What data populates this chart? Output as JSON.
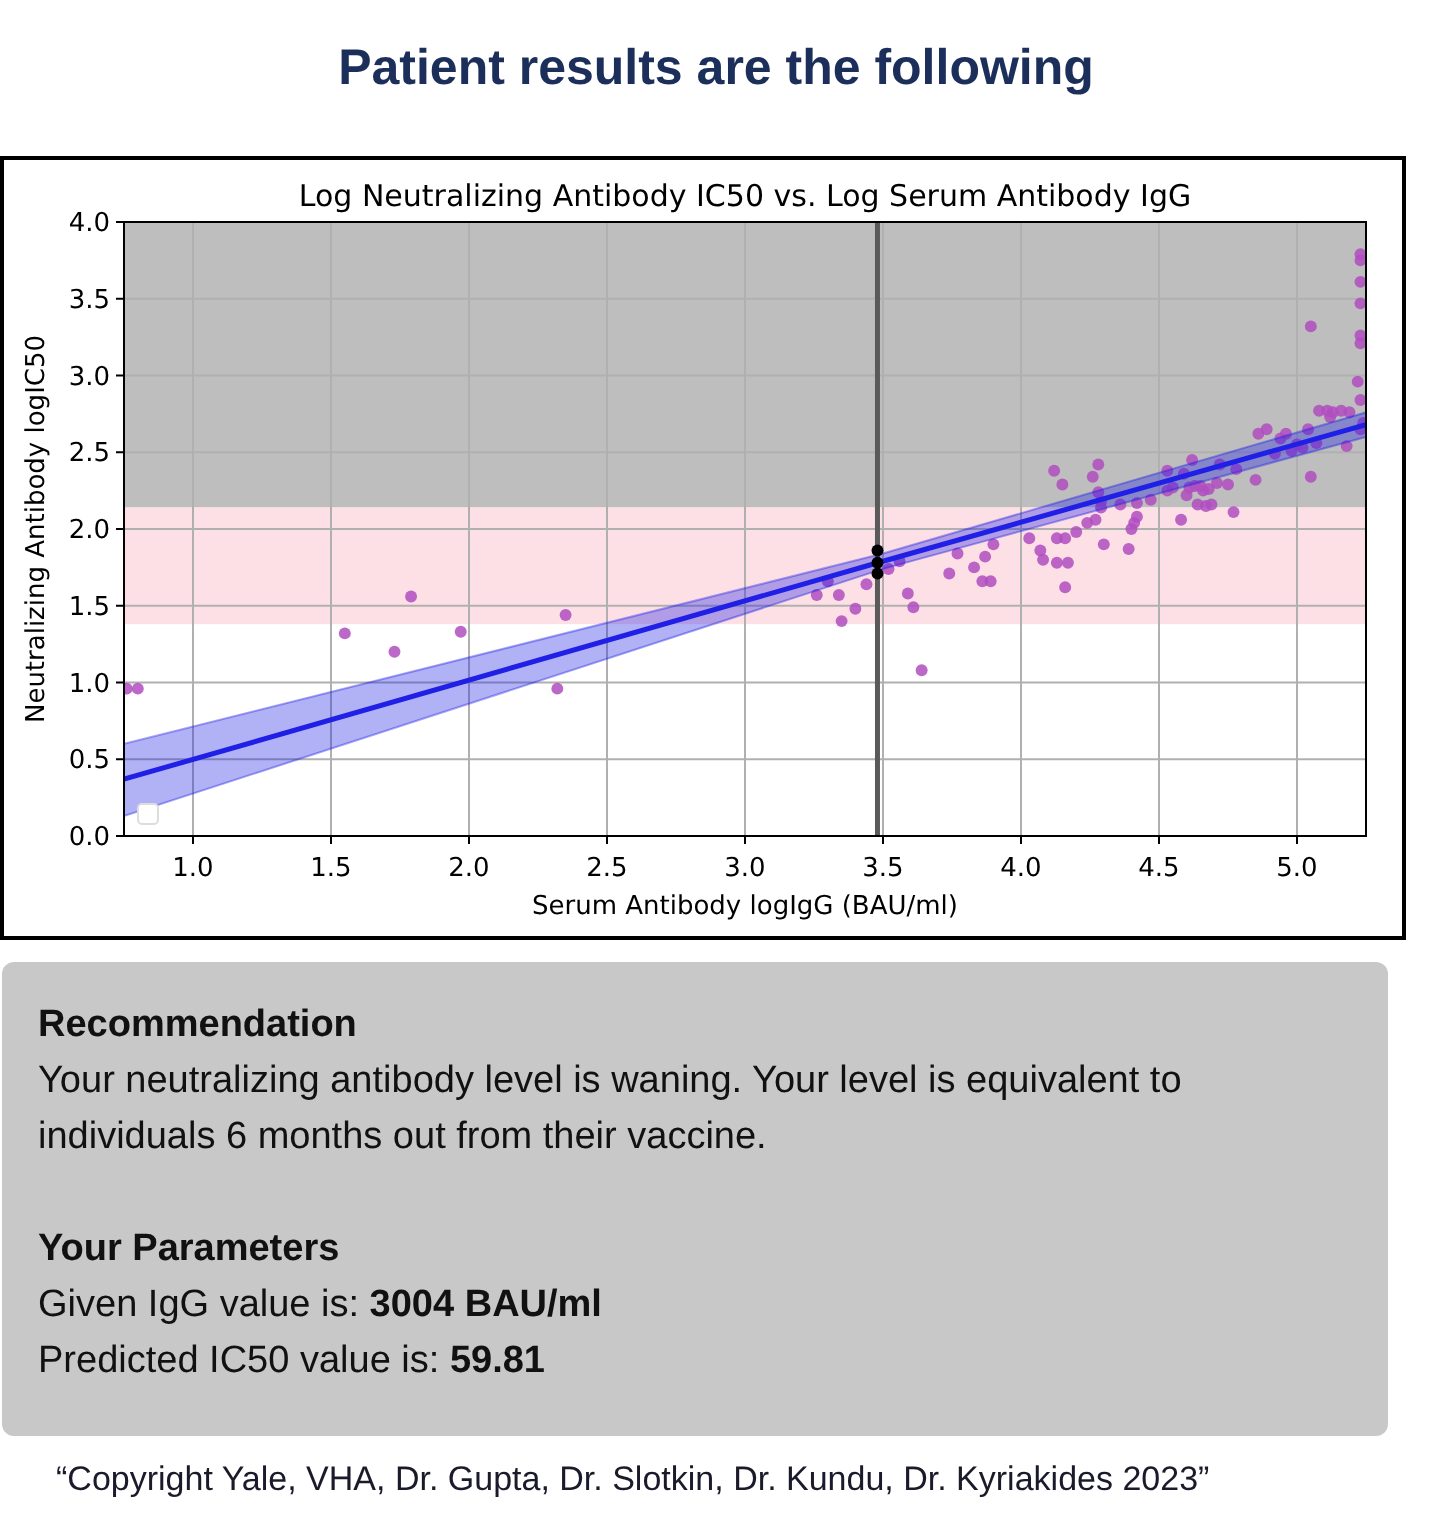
{
  "chart_data": {
    "type": "scatter",
    "title": "Patient results are the following",
    "subtitle": "Log Neutralizing Antibody IC50 vs. Log Serum Antibody IgG",
    "xlabel": "Serum Antibody logIgG (BAU/ml)",
    "ylabel": "Neutralizing Antibody logIC50",
    "xlim": [
      0.75,
      5.25
    ],
    "ylim": [
      0,
      4
    ],
    "xticks": [
      {
        "value": 1,
        "label": "1.0"
      },
      1.5,
      {
        "value": 2,
        "label": "2.0"
      },
      2.5,
      {
        "value": 3,
        "label": "3.0"
      },
      3.5,
      {
        "value": 4,
        "label": "4.0"
      },
      4.5,
      {
        "value": 5,
        "label": "5.0"
      }
    ],
    "yticks": [
      {
        "value": 0,
        "label": "0.0"
      },
      0.5,
      {
        "value": 1,
        "label": "1.0"
      },
      1.5,
      {
        "value": 2,
        "label": "2.0"
      },
      2.5,
      {
        "value": 3,
        "label": "3.0"
      },
      3.5,
      {
        "value": 4,
        "label": "4.0"
      }
    ],
    "grid": true,
    "bands": [
      {
        "axis": "y",
        "from": 2.14,
        "to": 4,
        "color": "#bebebe"
      },
      {
        "axis": "y",
        "from": 1.38,
        "to": 2.14,
        "color": "#fde0e6"
      }
    ],
    "ref_lines": [
      {
        "axis": "x",
        "value": 3.48,
        "color": "#5a5a5a"
      }
    ],
    "series": [
      {
        "marker": "circle",
        "color": "#b04dbf",
        "x": [
          0.76,
          0.8,
          1.55,
          1.73,
          1.79,
          1.97,
          2.32,
          2.35,
          3.26,
          3.3,
          3.34,
          3.35,
          3.4,
          3.44,
          3.52,
          3.56,
          3.59,
          3.61,
          3.64,
          3.74,
          3.77,
          3.83,
          3.86,
          3.87,
          3.89,
          3.9,
          4.03,
          4.07,
          4.08,
          4.12,
          4.13,
          4.13,
          4.15,
          4.16,
          4.16,
          4.17,
          4.2,
          4.24,
          4.26,
          4.27,
          4.28,
          4.28,
          4.29,
          4.29,
          4.3,
          4.36,
          4.39,
          4.4,
          4.41,
          4.42,
          4.42,
          4.47,
          4.53,
          4.53,
          4.55,
          4.58,
          4.59,
          4.6,
          4.61,
          4.62,
          4.63,
          4.64,
          4.65,
          4.66,
          4.67,
          4.68,
          4.69,
          4.71,
          4.72,
          4.75,
          4.77,
          4.78,
          4.85,
          4.86,
          4.89,
          4.92,
          4.94,
          4.96,
          4.98,
          5.0,
          5.02,
          5.04,
          5.05,
          5.05,
          5.07,
          5.08,
          5.11,
          5.12,
          5.13,
          5.16,
          5.18,
          5.19,
          5.22,
          5.23,
          5.23,
          5.23,
          5.23,
          5.23,
          5.23,
          5.23,
          5.23,
          5.24
        ],
        "values": [
          0.96,
          0.96,
          1.32,
          1.2,
          1.56,
          1.33,
          0.96,
          1.44,
          1.57,
          1.66,
          1.57,
          1.4,
          1.48,
          1.64,
          1.74,
          1.79,
          1.58,
          1.49,
          1.08,
          1.71,
          1.84,
          1.75,
          1.66,
          1.82,
          1.66,
          1.9,
          1.94,
          1.86,
          1.8,
          2.38,
          1.94,
          1.78,
          2.29,
          1.62,
          1.94,
          1.78,
          1.98,
          2.04,
          2.34,
          2.06,
          2.42,
          2.24,
          2.18,
          2.14,
          1.9,
          2.16,
          1.87,
          2.0,
          2.04,
          2.17,
          2.08,
          2.19,
          2.38,
          2.25,
          2.27,
          2.06,
          2.36,
          2.22,
          2.27,
          2.45,
          2.28,
          2.16,
          2.28,
          2.25,
          2.15,
          2.26,
          2.16,
          2.3,
          2.42,
          2.29,
          2.11,
          2.39,
          2.32,
          2.62,
          2.65,
          2.49,
          2.59,
          2.62,
          2.51,
          2.55,
          2.53,
          2.65,
          3.32,
          2.34,
          2.56,
          2.77,
          2.77,
          2.73,
          2.76,
          2.77,
          2.54,
          2.76,
          2.96,
          2.84,
          3.79,
          3.75,
          3.61,
          3.47,
          3.26,
          3.21,
          2.65,
          2.69
        ]
      },
      {
        "type": "line",
        "color": "#1f1fe6",
        "x": [
          0.75,
          3.5,
          5.25
        ],
        "values": [
          0.37,
          1.79,
          2.68
        ],
        "lower": [
          0.13,
          1.74,
          2.6
        ],
        "upper": [
          0.6,
          1.84,
          2.76
        ]
      },
      {
        "marker": "circle",
        "color": "#000000",
        "x": [
          3.48,
          3.48,
          3.48
        ],
        "values": [
          1.86,
          1.78,
          1.71
        ]
      }
    ],
    "annotations": [
      "Recommendation",
      "Your neutralizing antibody level is waning. Your level is equivalent to individuals 6 months out from their vaccine.",
      "Your Parameters",
      "Given IgG value is: 3004 BAU/ml",
      "Predicted IC50 value is: 59.81",
      "“Copyright Yale, VHA, Dr. Gupta, Dr. Slotkin, Dr. Kundu, Dr. Kyriakides 2023”"
    ]
  }
}
